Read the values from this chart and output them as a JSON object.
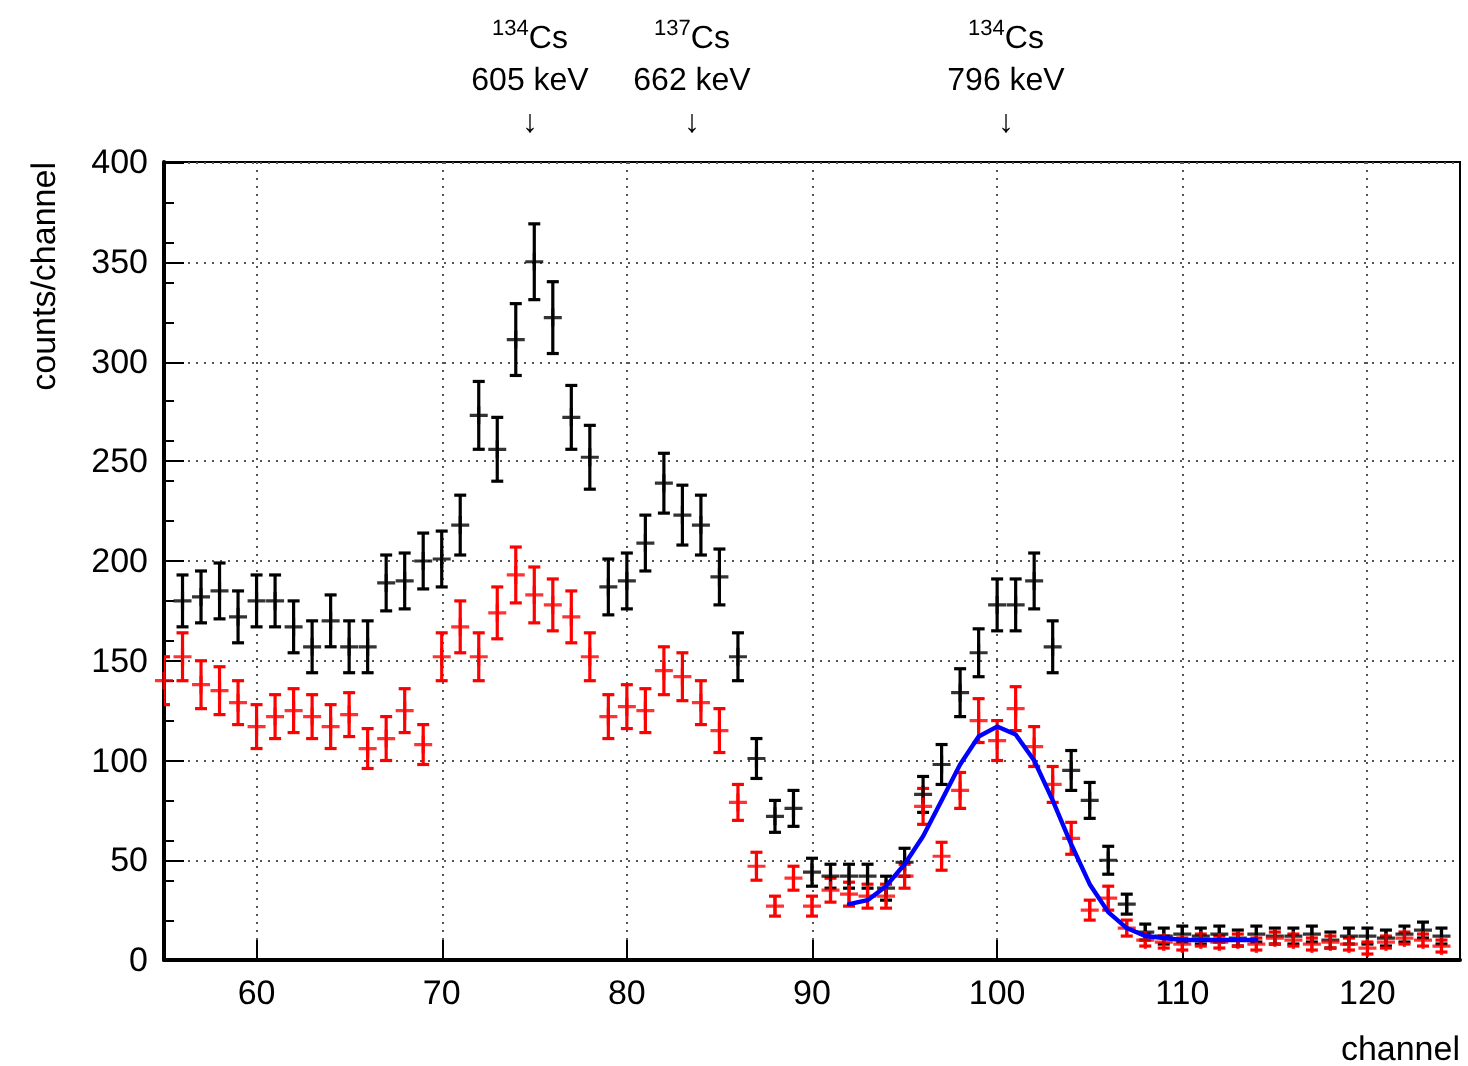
{
  "chart_data": {
    "type": "scatter",
    "marker": "cross",
    "xlabel": "channel",
    "ylabel": "counts/channel",
    "x": [
      55,
      56,
      57,
      58,
      59,
      60,
      61,
      62,
      63,
      64,
      65,
      66,
      67,
      68,
      69,
      70,
      71,
      72,
      73,
      74,
      75,
      76,
      77,
      78,
      79,
      80,
      81,
      82,
      83,
      84,
      85,
      86,
      87,
      88,
      89,
      90,
      91,
      92,
      93,
      94,
      95,
      96,
      97,
      98,
      99,
      100,
      101,
      102,
      103,
      104,
      105,
      106,
      107,
      108,
      109,
      110,
      111,
      112,
      113,
      114,
      115,
      116,
      117,
      118,
      119,
      120,
      121,
      122,
      123,
      124
    ],
    "series": [
      {
        "color": "#000000",
        "values": [
          null,
          180,
          182,
          185,
          172,
          180,
          180,
          167,
          157,
          170,
          157,
          157,
          189,
          190,
          200,
          201,
          218,
          273,
          256,
          311,
          350,
          322,
          272,
          252,
          187,
          190,
          209,
          239,
          223,
          218,
          192,
          152,
          101,
          72,
          76,
          44,
          42,
          42,
          42,
          36,
          49,
          83,
          98,
          134,
          154,
          178,
          178,
          190,
          157,
          95,
          80,
          50,
          28,
          14,
          12,
          13,
          12,
          13,
          11,
          13,
          12,
          12,
          13,
          10,
          12,
          12,
          11,
          13,
          15,
          12
        ],
        "errors": [
          null,
          13,
          13,
          14,
          13,
          13,
          13,
          13,
          13,
          13,
          13,
          13,
          14,
          14,
          14,
          14,
          15,
          17,
          16,
          18,
          19,
          18,
          16,
          16,
          14,
          14,
          14,
          15,
          15,
          15,
          14,
          12,
          10,
          8,
          9,
          7,
          6,
          6,
          6,
          6,
          7,
          9,
          10,
          12,
          12,
          13,
          13,
          14,
          13,
          10,
          9,
          7,
          5,
          4,
          4,
          4,
          4,
          4,
          4,
          4,
          4,
          4,
          4,
          4,
          4,
          4,
          4,
          4,
          4,
          4
        ]
      },
      {
        "color": "#ff0000",
        "values": [
          140,
          152,
          138,
          135,
          129,
          117,
          122,
          125,
          122,
          117,
          123,
          106,
          111,
          125,
          108,
          152,
          167,
          152,
          174,
          193,
          183,
          178,
          172,
          152,
          122,
          127,
          125,
          145,
          142,
          129,
          115,
          79,
          47,
          27,
          41,
          27,
          35,
          33,
          32,
          32,
          42,
          77,
          52,
          85,
          120,
          110,
          126,
          107,
          88,
          61,
          25,
          31,
          16,
          10,
          9,
          8,
          10,
          9,
          10,
          8,
          11,
          10,
          8,
          9,
          8,
          6,
          9,
          11,
          10,
          7
        ],
        "errors": [
          12,
          12,
          12,
          12,
          11,
          11,
          11,
          11,
          11,
          11,
          11,
          10,
          11,
          11,
          10,
          12,
          13,
          12,
          13,
          14,
          14,
          13,
          13,
          12,
          11,
          11,
          11,
          12,
          12,
          11,
          11,
          9,
          7,
          5,
          6,
          5,
          6,
          6,
          6,
          6,
          6,
          9,
          7,
          9,
          11,
          10,
          11,
          10,
          9,
          8,
          5,
          6,
          4,
          3,
          3,
          3,
          3,
          3,
          3,
          3,
          3,
          3,
          3,
          3,
          3,
          3,
          3,
          3,
          3,
          3
        ]
      },
      {
        "type": "line",
        "color": "#0000ff",
        "marker": "none",
        "x": [
          92,
          93,
          94,
          95,
          96,
          97,
          98,
          99,
          100,
          101,
          102,
          103,
          104,
          105,
          106,
          107,
          108,
          110,
          112,
          114
        ],
        "values": [
          28,
          30,
          37,
          48,
          62,
          80,
          98,
          112,
          117,
          113,
          100,
          80,
          58,
          38,
          24,
          16,
          12,
          10,
          10,
          10
        ]
      }
    ],
    "xlim": [
      55,
      125
    ],
    "xticks": [
      60,
      70,
      80,
      90,
      100,
      110,
      120
    ],
    "ylim": [
      0,
      400
    ],
    "yticks": [
      0,
      50,
      100,
      150,
      200,
      250,
      300,
      350,
      400
    ],
    "grid": true,
    "annotations": [
      "$^{134}$Cs\n605 keV\n↓",
      "$^{137}$Cs\n662 keV\n↓",
      "$^{134}$Cs\n796 keV\n↓"
    ]
  }
}
